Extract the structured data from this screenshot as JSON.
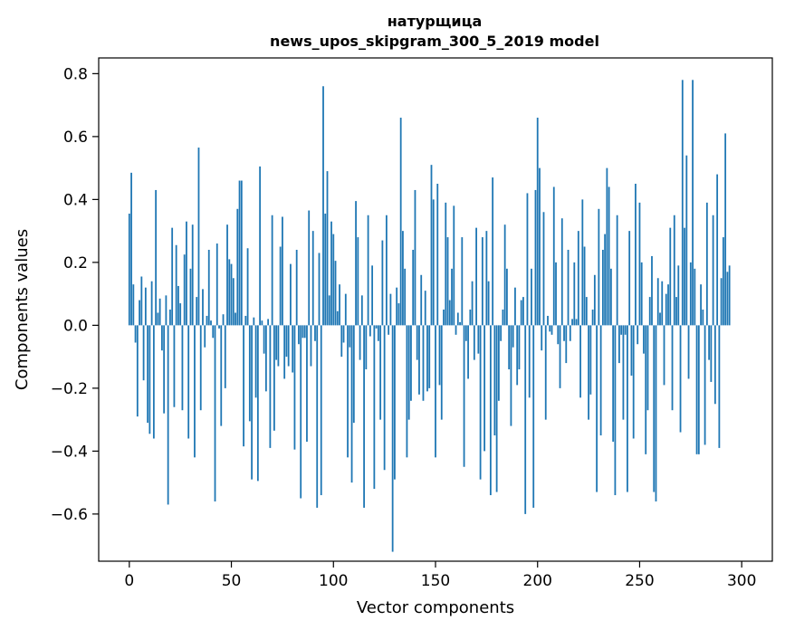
{
  "chart_data": {
    "type": "bar",
    "title_line1": "натурщица",
    "title_line2": "news_upos_skipgram_300_5_2019 model",
    "xlabel": "Vector components",
    "ylabel": "Components values",
    "xlim": [
      -15,
      315
    ],
    "ylim": [
      -0.75,
      0.85
    ],
    "xticks": [
      0,
      50,
      100,
      150,
      200,
      250,
      300
    ],
    "xtick_labels": [
      "0",
      "50",
      "100",
      "150",
      "200",
      "250",
      "300"
    ],
    "yticks": [
      -0.6,
      -0.4,
      -0.2,
      0.0,
      0.2,
      0.4,
      0.6,
      0.8
    ],
    "ytick_labels": [
      "−0.6",
      "−0.4",
      "−0.2",
      "0.0",
      "0.2",
      "0.4",
      "0.6",
      "0.8"
    ],
    "bar_color": "#1f77b4",
    "grid": false,
    "values": [
      0.355,
      0.485,
      0.13,
      -0.055,
      -0.29,
      0.08,
      0.155,
      -0.175,
      0.12,
      -0.31,
      -0.345,
      0.14,
      -0.36,
      0.43,
      0.04,
      0.085,
      -0.08,
      -0.28,
      0.095,
      -0.57,
      0.05,
      0.31,
      -0.26,
      0.255,
      0.125,
      0.07,
      -0.27,
      0.225,
      0.33,
      -0.36,
      0.18,
      0.32,
      -0.42,
      0.09,
      0.565,
      -0.27,
      0.115,
      -0.07,
      0.03,
      0.24,
      0.015,
      -0.04,
      -0.56,
      0.26,
      -0.01,
      -0.32,
      0.035,
      -0.2,
      0.32,
      0.21,
      0.195,
      0.15,
      0.04,
      0.37,
      0.46,
      0.46,
      -0.385,
      0.03,
      0.245,
      -0.305,
      -0.49,
      0.025,
      -0.23,
      -0.495,
      0.505,
      0.015,
      -0.09,
      -0.21,
      0.02,
      -0.39,
      0.35,
      -0.335,
      -0.11,
      -0.13,
      0.25,
      0.345,
      -0.17,
      -0.1,
      -0.13,
      0.195,
      -0.15,
      -0.395,
      0.24,
      -0.06,
      -0.55,
      -0.04,
      -0.04,
      -0.37,
      0.365,
      -0.13,
      0.3,
      -0.05,
      -0.58,
      0.23,
      -0.54,
      0.76,
      0.355,
      0.49,
      0.095,
      0.33,
      0.29,
      0.205,
      0.045,
      0.13,
      -0.1,
      -0.055,
      0.1,
      -0.42,
      -0.07,
      -0.5,
      -0.31,
      0.395,
      0.28,
      -0.11,
      0.095,
      -0.58,
      -0.14,
      0.35,
      -0.035,
      0.19,
      -0.52,
      -0.01,
      -0.05,
      -0.3,
      0.27,
      -0.46,
      0.35,
      -0.03,
      0.1,
      -0.72,
      -0.49,
      0.12,
      0.07,
      0.66,
      0.3,
      0.18,
      -0.42,
      -0.3,
      -0.24,
      0.24,
      0.43,
      -0.11,
      -0.22,
      0.16,
      -0.24,
      0.11,
      -0.21,
      -0.2,
      0.51,
      0.4,
      -0.42,
      0.45,
      -0.19,
      -0.3,
      0.05,
      0.39,
      0.28,
      0.08,
      0.18,
      0.38,
      -0.03,
      0.04,
      0.01,
      0.28,
      -0.45,
      -0.05,
      -0.17,
      0.05,
      0.14,
      -0.11,
      0.31,
      -0.09,
      -0.49,
      0.28,
      -0.4,
      0.3,
      0.14,
      -0.54,
      0.47,
      -0.35,
      -0.53,
      -0.24,
      -0.05,
      0.05,
      0.32,
      0.18,
      -0.14,
      -0.32,
      -0.07,
      0.12,
      -0.19,
      -0.14,
      0.08,
      0.09,
      -0.6,
      0.42,
      -0.23,
      0.18,
      -0.58,
      0.43,
      0.66,
      0.5,
      -0.08,
      0.36,
      -0.3,
      0.03,
      -0.02,
      -0.03,
      0.44,
      0.2,
      -0.06,
      -0.2,
      0.34,
      -0.05,
      -0.12,
      0.24,
      -0.05,
      0.02,
      0.2,
      0.02,
      0.3,
      -0.23,
      0.4,
      0.25,
      0.09,
      -0.3,
      -0.22,
      0.05,
      0.16,
      -0.53,
      0.37,
      -0.35,
      0.24,
      0.29,
      0.5,
      0.44,
      0.18,
      -0.37,
      -0.54,
      0.35,
      -0.12,
      -0.03,
      -0.3,
      -0.03,
      -0.53,
      0.3,
      -0.16,
      -0.36,
      0.45,
      -0.06,
      0.39,
      0.2,
      -0.09,
      -0.41,
      -0.27,
      0.09,
      0.22,
      -0.53,
      -0.56,
      0.15,
      0.04,
      0.14,
      -0.19,
      0.1,
      0.13,
      0.31,
      -0.27,
      0.35,
      0.09,
      0.19,
      -0.34,
      0.78,
      0.31,
      0.54,
      -0.17,
      0.2,
      0.78,
      0.18,
      -0.41,
      -0.41,
      0.13,
      0.05,
      -0.38,
      0.39,
      -0.11,
      -0.18,
      0.35,
      -0.25,
      0.48,
      -0.39,
      0.15,
      0.28,
      0.61,
      0.17,
      0.19
    ]
  }
}
